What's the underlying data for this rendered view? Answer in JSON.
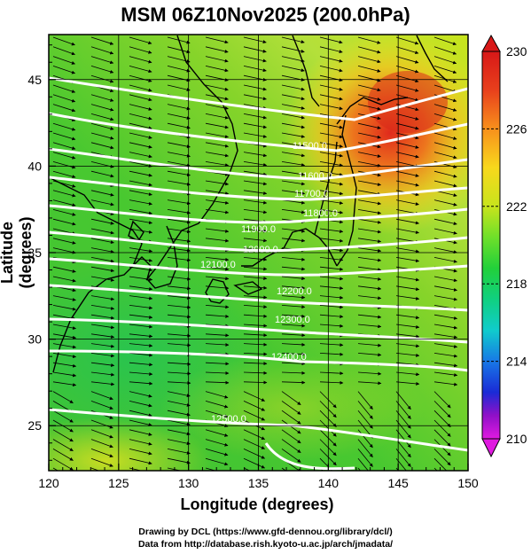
{
  "title": "MSM 06Z10Nov2025 (200.0hPa)",
  "chart_data": {
    "type": "heatmap",
    "title": "MSM 06Z10Nov2025 (200.0hPa)",
    "xlabel": "Longitude (degrees)",
    "ylabel": "Latitude  (degrees)",
    "xlim": [
      120,
      150
    ],
    "ylim": [
      22.4,
      47.6
    ],
    "x_ticks": [
      "120",
      "125",
      "130",
      "135",
      "140",
      "145",
      "150"
    ],
    "y_ticks": [
      "25",
      "30",
      "35",
      "40",
      "45"
    ],
    "grid": true,
    "colorbar": {
      "ticks": [
        "230",
        "226",
        "222",
        "218",
        "214",
        "210"
      ],
      "range": [
        210,
        230
      ],
      "colors": [
        "#e01ae0",
        "#9010c8",
        "#1a2bd6",
        "#1878e6",
        "#10cccc",
        "#10d080",
        "#22d03a",
        "#6ee02a",
        "#c8e41c",
        "#f8d81c",
        "#f8901c",
        "#e8401c",
        "#d81818"
      ]
    },
    "contour_labels": [
      "11500.0",
      "11600.0",
      "11700.0",
      "11800.0",
      "11900.0",
      "12000.0",
      "12100.0",
      "12200.0",
      "12300.0",
      "12400.0",
      "12500.0"
    ]
  },
  "credits": {
    "line1": "Drawing by DCL (https://www.gfd-dennou.org/library/dcl/)",
    "line2": "Data from http://database.rish.kyoto-u.ac.jp/arch/jmadata/"
  }
}
